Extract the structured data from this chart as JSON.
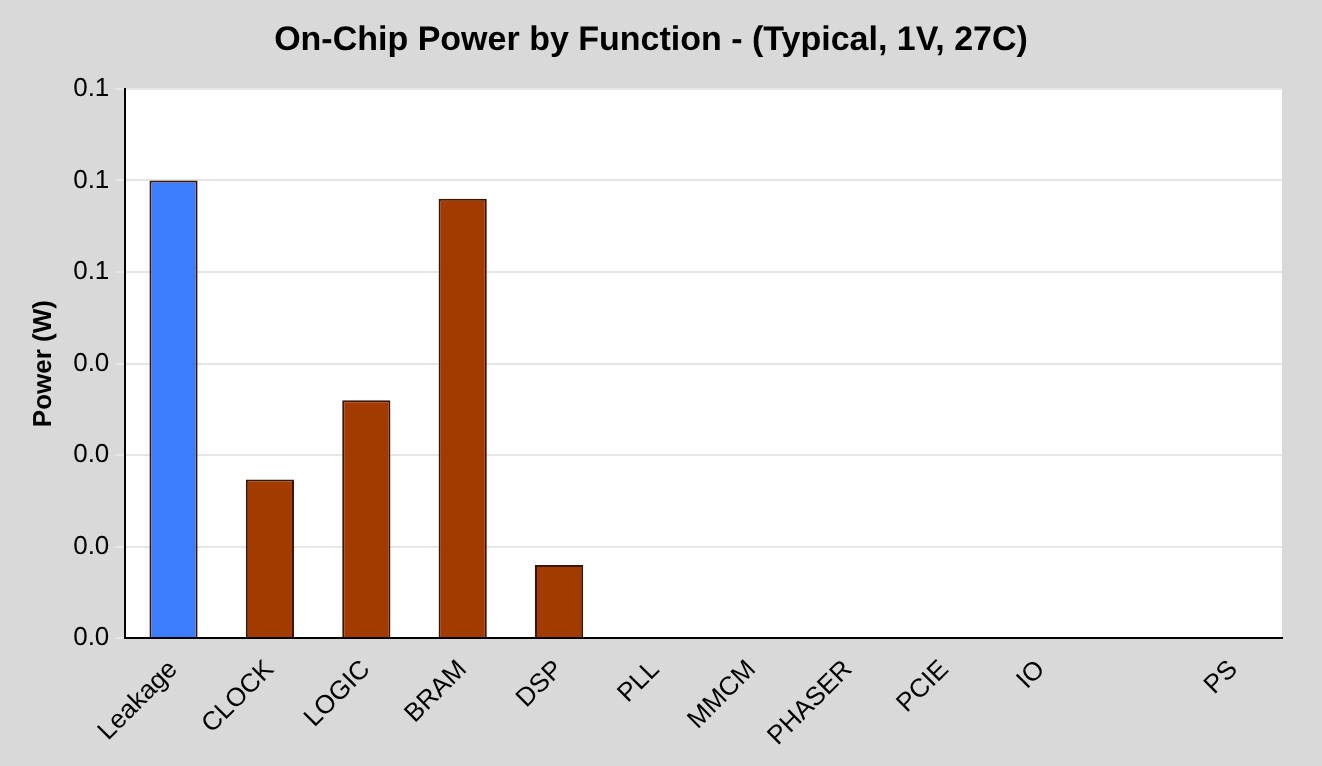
{
  "chart_data": {
    "type": "bar",
    "title": "On-Chip Power by Function - (Typical, 1V, 27C)",
    "ylabel": "Power (W)",
    "categories": [
      "Leakage",
      "CLOCK",
      "LOGIC",
      "BRAM",
      "DSP",
      "PLL",
      "MMCM",
      "PHASER",
      "PCIE",
      "IO",
      null,
      "PS"
    ],
    "values": [
      0.075,
      0.026,
      0.039,
      0.072,
      0.012,
      0,
      0,
      0,
      0,
      0,
      0,
      0
    ],
    "colors": [
      "#3d7bff",
      "#a33a00",
      "#a33a00",
      "#a33a00",
      "#a33a00",
      "#a33a00",
      "#a33a00",
      "#a33a00",
      "#a33a00",
      "#a33a00",
      "#a33a00",
      "#a33a00"
    ],
    "ylim": [
      0,
      0.09
    ],
    "yticks": [
      {
        "value": 0,
        "label": "0.0"
      },
      {
        "value": 0.015,
        "label": "0.0"
      },
      {
        "value": 0.03,
        "label": "0.0"
      },
      {
        "value": 0.045,
        "label": "0.0"
      },
      {
        "value": 0.06,
        "label": "0.1"
      },
      {
        "value": 0.075,
        "label": "0.1"
      },
      {
        "value": 0.09,
        "label": "0.1"
      }
    ],
    "grid": "y",
    "legend": false
  }
}
